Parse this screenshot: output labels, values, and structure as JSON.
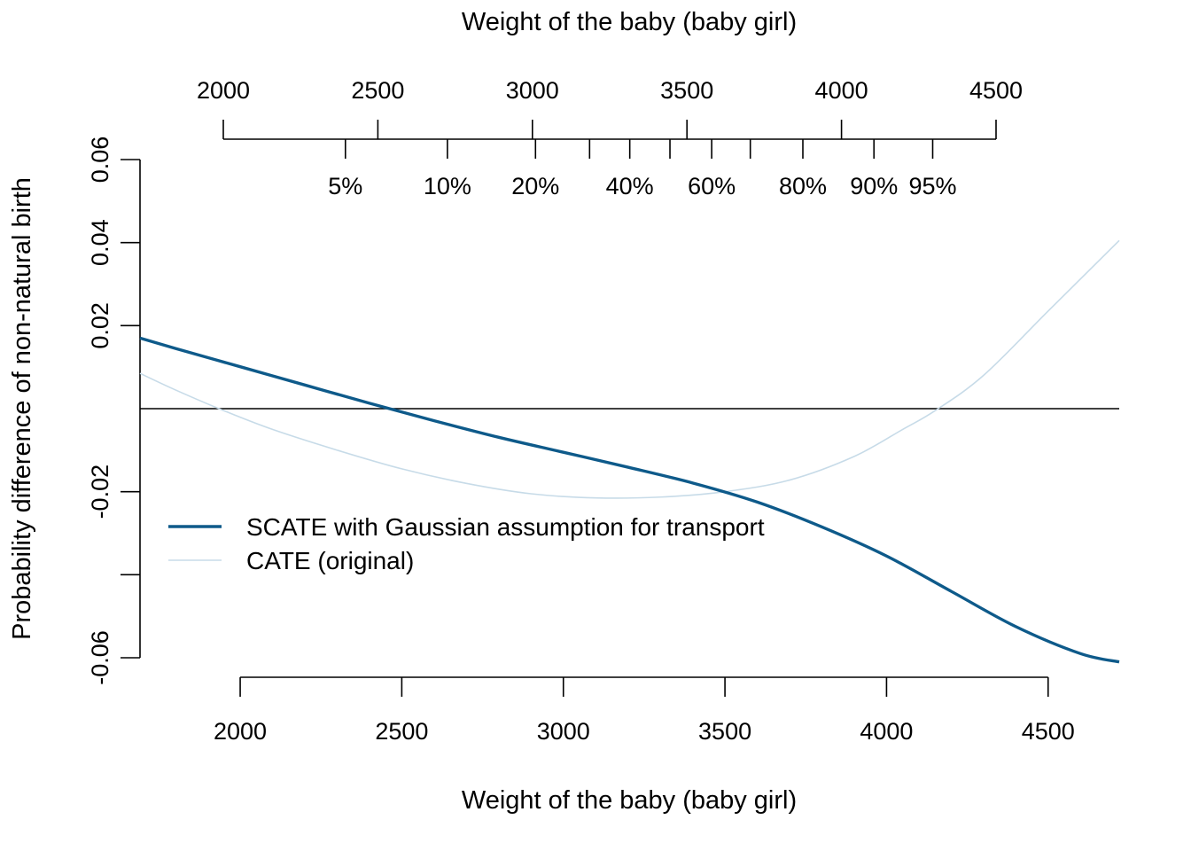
{
  "chart_data": {
    "type": "line",
    "xlabel": "Weight of the baby (baby girl)",
    "top_xlabel": "Weight of the baby (baby girl)",
    "ylabel": "Probability difference of non-natural birth",
    "xlim": [
      1690,
      4720
    ],
    "ylim": [
      -0.06,
      0.06
    ],
    "x_ticks": [
      2000,
      2500,
      3000,
      3500,
      4000,
      4500
    ],
    "x_tick_labels": [
      "2000",
      "2500",
      "3000",
      "3500",
      "4000",
      "4500"
    ],
    "y_ticks": [
      0.06,
      0.04,
      0.02,
      -0.02,
      -0.04,
      -0.06
    ],
    "y_tick_labels": [
      "0.06",
      "0.04",
      "0.02",
      "-0.02",
      "",
      "-0.06"
    ],
    "reference_line_y": 0,
    "grid": false,
    "legend_position": "center-left",
    "top_axis": {
      "range": [
        2000,
        4500
      ],
      "weight_ticks": [
        2000,
        2500,
        3000,
        3500,
        4000,
        4500
      ],
      "weight_labels": [
        "2000",
        "2500",
        "3000",
        "3500",
        "4000",
        "4500"
      ],
      "quantile_ticks": [
        {
          "weight": 2395,
          "label": "5%"
        },
        {
          "weight": 2725,
          "label": "10%"
        },
        {
          "weight": 3010,
          "label": "20%"
        },
        {
          "weight": 3185,
          "label": ""
        },
        {
          "weight": 3315,
          "label": "40%"
        },
        {
          "weight": 3445,
          "label": ""
        },
        {
          "weight": 3580,
          "label": "60%"
        },
        {
          "weight": 3705,
          "label": ""
        },
        {
          "weight": 3875,
          "label": "80%"
        },
        {
          "weight": 4105,
          "label": "90%"
        },
        {
          "weight": 4295,
          "label": "95%"
        }
      ]
    },
    "series": [
      {
        "name": "SCATE with Gaussian assumption for transport",
        "color": "#0e5a8a",
        "x": [
          1690,
          1800,
          2000,
          2200,
          2400,
          2600,
          2800,
          3000,
          3200,
          3400,
          3600,
          3800,
          4000,
          4200,
          4400,
          4600,
          4720
        ],
        "y": [
          0.017,
          0.0145,
          0.0101,
          0.0057,
          0.0013,
          -0.0029,
          -0.0069,
          -0.0105,
          -0.0141,
          -0.0179,
          -0.0225,
          -0.0285,
          -0.0355,
          -0.044,
          -0.0525,
          -0.059,
          -0.061
        ]
      },
      {
        "name": "CATE (original)",
        "color": "#c7dbe8",
        "x": [
          1690,
          1800,
          1950,
          2100,
          2300,
          2500,
          2700,
          2900,
          3100,
          3300,
          3500,
          3700,
          3900,
          4050,
          4150,
          4300,
          4500,
          4720
        ],
        "y": [
          0.0085,
          0.0045,
          -0.0005,
          -0.005,
          -0.01,
          -0.0145,
          -0.018,
          -0.0205,
          -0.0215,
          -0.0213,
          -0.02,
          -0.0172,
          -0.0115,
          -0.005,
          -0.0005,
          0.008,
          0.0235,
          0.0405
        ]
      }
    ]
  }
}
